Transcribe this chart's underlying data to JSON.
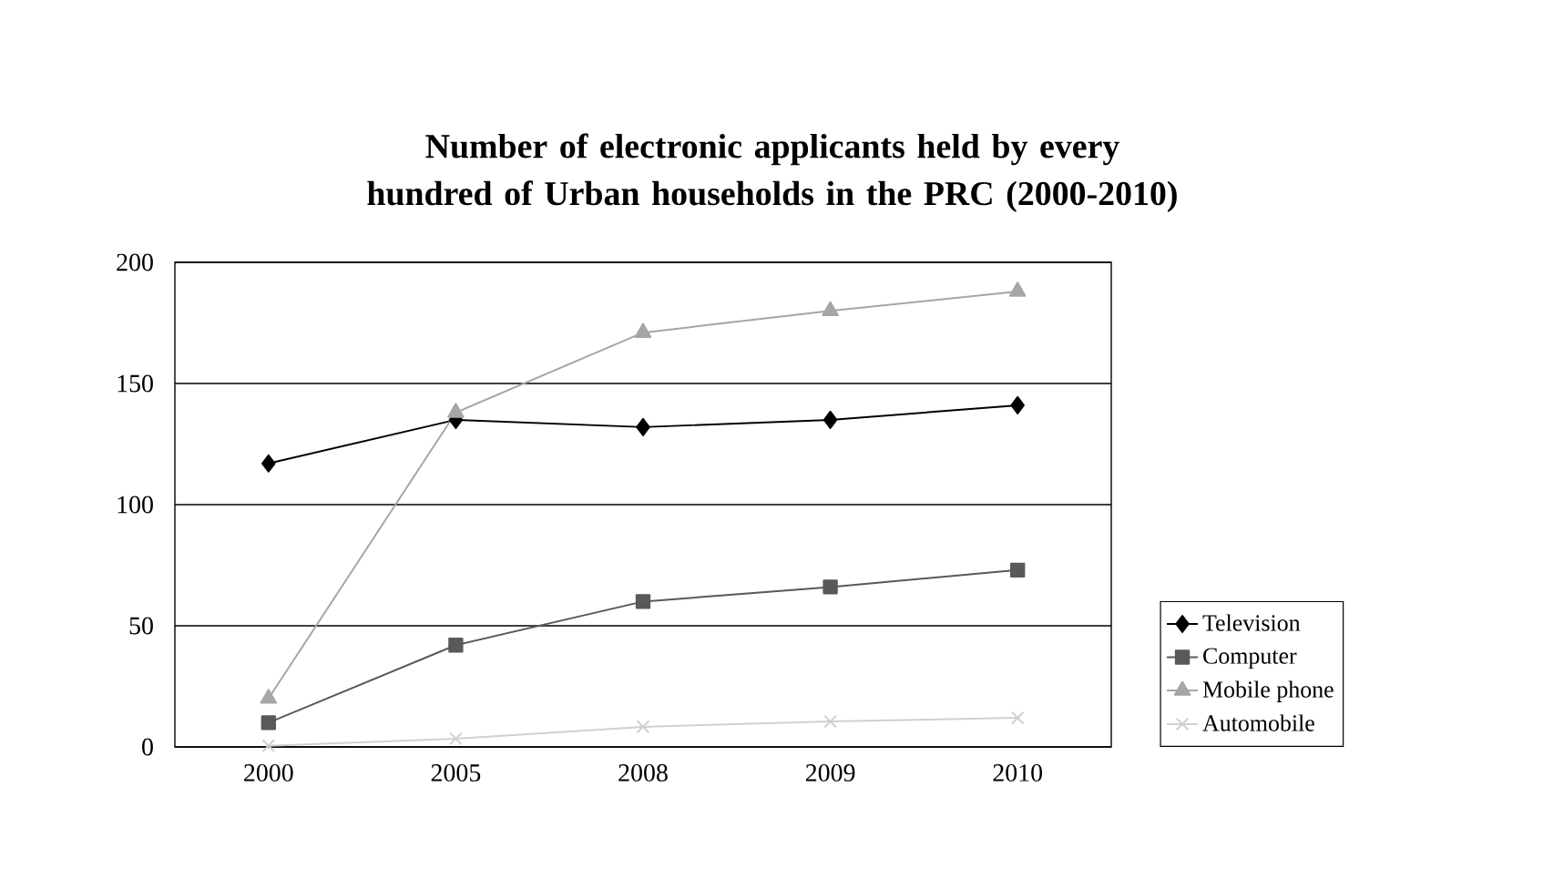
{
  "chart_data": {
    "type": "line",
    "title": "Number of electronic applicants held by every hundred of Urban households in the PRC (2000-2010)",
    "categories": [
      "2000",
      "2005",
      "2008",
      "2009",
      "2010"
    ],
    "series": [
      {
        "name": "Television",
        "color": "#000000",
        "marker": "diamond",
        "values": [
          117,
          135,
          132,
          135,
          141
        ]
      },
      {
        "name": "Computer",
        "color": "#595959",
        "marker": "square",
        "values": [
          10,
          42,
          60,
          66,
          73
        ]
      },
      {
        "name": "Mobile phone",
        "color": "#a6a6a6",
        "marker": "triangle",
        "values": [
          20,
          138,
          171,
          180,
          188
        ]
      },
      {
        "name": "Automobile",
        "color": "#d0d0d0",
        "marker": "cross",
        "values": [
          0.5,
          3.4,
          8.3,
          10.5,
          12
        ]
      }
    ],
    "ylim": [
      0,
      200
    ],
    "yticks": [
      0,
      50,
      100,
      150,
      200
    ],
    "grid": "y",
    "legend": "right",
    "line_style": "solid"
  }
}
